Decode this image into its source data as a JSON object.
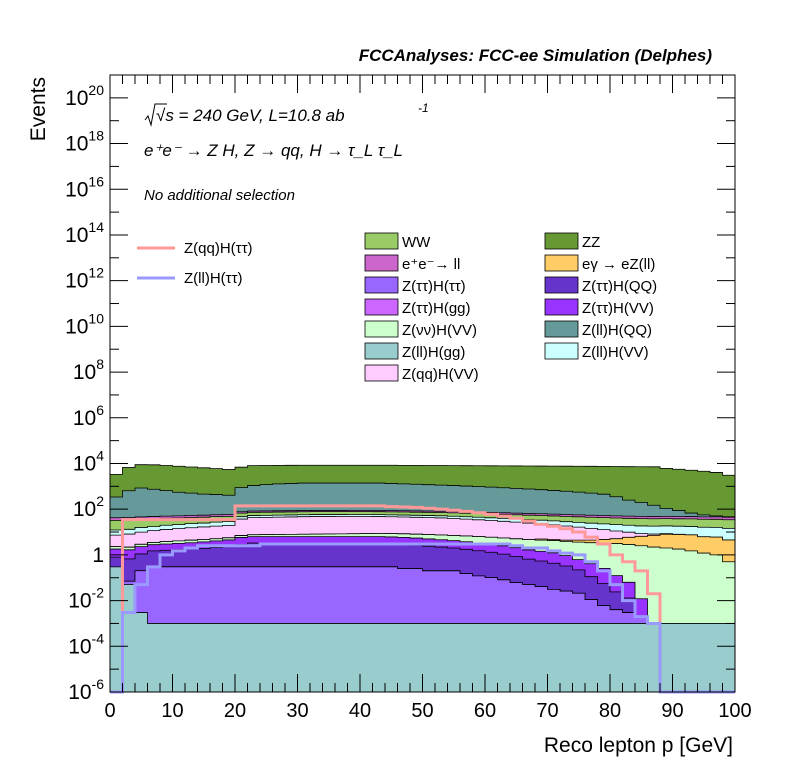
{
  "chart_data": {
    "type": "area",
    "title": "FCCAnalyses: FCC-ee Simulation (Delphes)",
    "xlabel": "Reco lepton p [GeV]",
    "ylabel": "Events",
    "xlim": [
      0,
      100
    ],
    "ylim": [
      1e-06,
      1e+21
    ],
    "y_log_scale": true,
    "x_ticks": [
      "0",
      "10",
      "20",
      "30",
      "40",
      "50",
      "60",
      "70",
      "80",
      "90",
      "100"
    ],
    "y_ticks": [
      {
        "base": "10",
        "exp": "-6",
        "value": 1e-06
      },
      {
        "base": "10",
        "exp": "-4",
        "value": 0.0001
      },
      {
        "base": "10",
        "exp": "-2",
        "value": 0.01
      },
      {
        "base": "1",
        "exp": "",
        "value": 1
      },
      {
        "base": "10",
        "exp": "2",
        "value": 100.0
      },
      {
        "base": "10",
        "exp": "4",
        "value": 10000.0
      },
      {
        "base": "10",
        "exp": "6",
        "value": 1000000.0
      },
      {
        "base": "10",
        "exp": "8",
        "value": 100000000.0
      },
      {
        "base": "10",
        "exp": "10",
        "value": 10000000000.0
      },
      {
        "base": "10",
        "exp": "12",
        "value": 1000000000000.0
      },
      {
        "base": "10",
        "exp": "14",
        "value": 100000000000000.0
      },
      {
        "base": "10",
        "exp": "16",
        "value": 1e+16
      },
      {
        "base": "10",
        "exp": "18",
        "value": 1e+18
      },
      {
        "base": "10",
        "exp": "20",
        "value": 1e+20
      }
    ],
    "annotations": {
      "energy": "√s = 240 GeV, L=10.8 ab",
      "energy_sup": "-1",
      "process": "e⁺e⁻ → Z H, Z → qq, H → τ_L τ_L",
      "selection": "No additional selection"
    },
    "grid": false,
    "legend_placement": "top-center",
    "signal_legend": [
      {
        "name": "Z(qq)H(ττ)",
        "color": "#ff9999"
      },
      {
        "name": "Z(ll)H(ττ)",
        "color": "#9999ff"
      }
    ],
    "background_legend": [
      {
        "name": "WW",
        "color": "#99cc66"
      },
      {
        "name": "ZZ",
        "color": "#669933"
      },
      {
        "name": "e⁺e⁻→ ll",
        "color": "#cc66cc"
      },
      {
        "name": "eγ → eZ(ll)",
        "color": "#ffcc66"
      },
      {
        "name": "Z(ττ)H(ττ)",
        "color": "#9966ff"
      },
      {
        "name": "Z(ττ)H(QQ)",
        "color": "#6633cc"
      },
      {
        "name": "Z(ττ)H(gg)",
        "color": "#cc66ff"
      },
      {
        "name": "Z(ττ)H(VV)",
        "color": "#9933ff"
      },
      {
        "name": "Z(νν)H(VV)",
        "color": "#ccffcc"
      },
      {
        "name": "Z(ll)H(QQ)",
        "color": "#669999"
      },
      {
        "name": "Z(ll)H(gg)",
        "color": "#99cccc"
      },
      {
        "name": "Z(ll)H(VV)",
        "color": "#ccffff"
      },
      {
        "name": "Z(qq)H(VV)",
        "color": "#ffccff"
      }
    ],
    "bin_edges": [
      0,
      2,
      4,
      6,
      8,
      10,
      12,
      14,
      16,
      18,
      20,
      22,
      24,
      26,
      28,
      30,
      32,
      34,
      36,
      38,
      40,
      42,
      44,
      46,
      48,
      50,
      52,
      54,
      56,
      58,
      60,
      62,
      64,
      66,
      68,
      70,
      72,
      74,
      76,
      78,
      80,
      82,
      84,
      86,
      88,
      90,
      92,
      94,
      96,
      98,
      100
    ],
    "stack_order": "bottom-to-top",
    "stacked_series": [
      {
        "name": "Z(ll)H(gg)",
        "color": "#99cccc",
        "values": [
          0.3,
          0.05,
          0.003,
          0.001,
          0.001,
          0.001,
          0.001,
          0.001,
          0.001,
          0.001,
          0.001,
          0.001,
          0.001,
          0.001,
          0.001,
          0.001,
          0.001,
          0.001,
          0.001,
          0.001,
          0.001,
          0.001,
          0.001,
          0.001,
          0.001,
          0.001,
          0.001,
          0.001,
          0.001,
          0.001,
          0.001,
          0.001,
          0.001,
          0.001,
          0.001,
          0.001,
          0.001,
          0.001,
          0.001,
          0.001,
          0.001,
          0.001,
          0.001,
          0.001,
          0.001,
          0.001,
          0.001,
          0.001,
          0.001,
          0.001
        ]
      },
      {
        "name": "Z(ττ)H(ττ)",
        "color": "#9966ff",
        "values": [
          0,
          0.02,
          0.2,
          0.3,
          0.3,
          0.3,
          0.3,
          0.3,
          0.3,
          0.3,
          0.3,
          0.3,
          0.3,
          0.3,
          0.3,
          0.3,
          0.3,
          0.3,
          0.3,
          0.3,
          0.3,
          0.3,
          0.3,
          0.25,
          0.25,
          0.2,
          0.2,
          0.2,
          0.15,
          0.12,
          0.1,
          0.08,
          0.06,
          0.05,
          0.04,
          0.03,
          0.025,
          0.02,
          0.01,
          0.005,
          0.003,
          0.002,
          0.001,
          0,
          0,
          0,
          0,
          0,
          0,
          0
        ]
      },
      {
        "name": "Z(ττ)H(gg)",
        "color": "#cc66ff",
        "values": [
          0,
          0,
          0,
          0,
          0,
          0,
          0,
          0,
          0,
          0,
          0,
          0,
          0,
          0,
          0,
          0,
          0,
          0,
          0,
          0,
          0,
          0,
          0,
          0,
          0,
          0,
          0,
          0,
          0,
          0,
          0,
          0,
          0,
          0,
          0,
          0,
          0,
          0,
          0,
          0,
          0,
          0,
          0,
          0,
          0,
          0,
          0,
          0,
          0,
          0
        ]
      },
      {
        "name": "Z(ττ)H(QQ)",
        "color": "#6633cc",
        "values": [
          0.5,
          0.6,
          0.9,
          1.2,
          1.3,
          1.4,
          1.5,
          1.6,
          1.8,
          2,
          2.5,
          3,
          3,
          3,
          3,
          3,
          3,
          3,
          3,
          3,
          3,
          3,
          2.8,
          2.6,
          2.4,
          2.2,
          2,
          1.8,
          1.6,
          1.4,
          1.2,
          1,
          0.8,
          0.6,
          0.5,
          0.4,
          0.3,
          0.2,
          0.1,
          0.05,
          0.02,
          0.01,
          0,
          0,
          0,
          0,
          0,
          0,
          0,
          0
        ]
      },
      {
        "name": "Z(ττ)H(VV)",
        "color": "#9933ff",
        "values": [
          1,
          1,
          1.2,
          1.3,
          1.4,
          1.5,
          1.6,
          1.8,
          2,
          2.2,
          3,
          3,
          3,
          3,
          3,
          3,
          3,
          3,
          3,
          3,
          3,
          3,
          3,
          3,
          2.8,
          2.6,
          2.4,
          2.2,
          2,
          1.8,
          1.6,
          1.4,
          1.2,
          1,
          0.9,
          0.8,
          0.6,
          0.4,
          0.3,
          0.2,
          0.1,
          0.05,
          0.01,
          0,
          0,
          0,
          0,
          0,
          0,
          0
        ]
      },
      {
        "name": "Z(νν)H(VV)",
        "color": "#ccffcc",
        "values": [
          0.5,
          0.5,
          0.6,
          0.7,
          0.8,
          0.9,
          1,
          1,
          1,
          1.1,
          1.2,
          1.3,
          1.4,
          1.5,
          1.6,
          1.7,
          1.8,
          1.9,
          2,
          2.1,
          2.2,
          2.3,
          2.4,
          2.5,
          2.6,
          2.7,
          2.8,
          2.9,
          3,
          3,
          3,
          3,
          3,
          3,
          3,
          3,
          3,
          3,
          3,
          3,
          3,
          2.8,
          2.5,
          2.2,
          2,
          1.8,
          1.5,
          1.2,
          1,
          0.5
        ]
      },
      {
        "name": "eγ → eZ(ll)",
        "color": "#ffcc66",
        "values": [
          0,
          0,
          0,
          0,
          0,
          0,
          0,
          0,
          0,
          0,
          0,
          0,
          0,
          0,
          0,
          0,
          0,
          0,
          0,
          0,
          0,
          0,
          0,
          0,
          0,
          0,
          0,
          0,
          0,
          0,
          0,
          0,
          0,
          0,
          0.5,
          0.5,
          0.5,
          0.8,
          1,
          1.5,
          2,
          3,
          4,
          5,
          6,
          6,
          6,
          5,
          5,
          4
        ]
      },
      {
        "name": "Z(qq)H(VV)",
        "color": "#ffccff",
        "values": [
          5,
          6,
          7,
          8,
          9,
          10,
          11,
          12,
          13,
          14,
          30,
          35,
          36,
          37,
          38,
          39,
          40,
          40,
          40,
          40,
          40,
          39,
          38,
          37,
          36,
          35,
          34,
          32,
          30,
          28,
          26,
          24,
          22,
          20,
          18,
          16,
          14,
          12,
          10,
          8,
          6,
          4,
          2,
          1,
          0.5,
          0.2,
          0.1,
          0,
          0,
          0
        ]
      },
      {
        "name": "Z(ll)H(VV)",
        "color": "#ccffff",
        "values": [
          5,
          5,
          6,
          6,
          7,
          7,
          8,
          8,
          9,
          9,
          10,
          10,
          10,
          10,
          10,
          10,
          10,
          10,
          10,
          10,
          10,
          10,
          10,
          10,
          10,
          10,
          10,
          10,
          10,
          10,
          10,
          10,
          10,
          10,
          10,
          10,
          10,
          10,
          10,
          10,
          10,
          10,
          10,
          10,
          10,
          10,
          10,
          10,
          10,
          10
        ]
      },
      {
        "name": "WW",
        "color": "#99cc66",
        "values": [
          20,
          20,
          20,
          20,
          20,
          20,
          20,
          20,
          20,
          20,
          20,
          20,
          20,
          20,
          20,
          20,
          20,
          20,
          20,
          20,
          20,
          20,
          20,
          20,
          20,
          20,
          20,
          20,
          20,
          20,
          20,
          20,
          20,
          20,
          20,
          20,
          20,
          20,
          20,
          20,
          20,
          20,
          20,
          20,
          20,
          20,
          20,
          20,
          20,
          20
        ]
      },
      {
        "name": "e⁺e⁻→ ll",
        "color": "#cc66cc",
        "values": [
          10,
          10,
          10,
          10,
          10,
          10,
          10,
          10,
          10,
          10,
          10,
          10,
          10,
          10,
          10,
          10,
          10,
          10,
          10,
          10,
          10,
          10,
          10,
          10,
          10,
          10,
          10,
          10,
          10,
          10,
          10,
          10,
          10,
          10,
          10,
          10,
          10,
          10,
          10,
          10,
          10,
          10,
          10,
          10,
          10,
          10,
          10,
          10,
          10,
          10
        ]
      },
      {
        "name": "Z(ll)H(QQ)",
        "color": "#669999",
        "values": [
          300,
          600,
          800,
          700,
          600,
          500,
          450,
          400,
          380,
          350,
          800,
          1000,
          1100,
          1200,
          1250,
          1300,
          1300,
          1300,
          1300,
          1300,
          1300,
          1300,
          1250,
          1200,
          1150,
          1100,
          1050,
          1000,
          950,
          900,
          850,
          800,
          750,
          700,
          650,
          600,
          550,
          500,
          450,
          400,
          300,
          200,
          150,
          100,
          60,
          40,
          20,
          10,
          5,
          2
        ]
      },
      {
        "name": "ZZ",
        "color": "#669933",
        "values": [
          3000,
          6000,
          8000,
          8000,
          7500,
          7000,
          6500,
          6000,
          5500,
          5000,
          6000,
          7000,
          7000,
          7000,
          7000,
          7000,
          7000,
          7000,
          7000,
          7000,
          7000,
          7000,
          7000,
          7000,
          7000,
          7000,
          7000,
          7000,
          7000,
          7000,
          7000,
          7000,
          7000,
          7000,
          7000,
          7000,
          7000,
          7000,
          7000,
          7000,
          7000,
          7000,
          7000,
          7000,
          6000,
          5500,
          5000,
          4500,
          4000,
          3000
        ]
      }
    ],
    "signal_series": [
      {
        "name": "Z(qq)H(ττ)",
        "color": "#ff9999",
        "values": [
          0,
          35,
          35,
          35,
          35,
          35,
          35,
          35,
          35,
          35,
          140,
          140,
          140,
          140,
          140,
          140,
          140,
          140,
          140,
          140,
          140,
          140,
          130,
          125,
          120,
          110,
          100,
          90,
          80,
          70,
          60,
          50,
          40,
          30,
          22,
          18,
          14,
          10,
          6,
          3,
          1,
          0.5,
          0.2,
          0.02,
          0,
          0,
          0,
          0,
          0,
          0
        ]
      },
      {
        "name": "Z(ll)H(ττ)",
        "color": "#9999ff",
        "values": [
          0,
          0.003,
          0.05,
          0.3,
          1,
          1.5,
          2,
          2.5,
          2.5,
          2.5,
          2.5,
          2.5,
          3,
          3,
          3,
          3,
          3,
          3,
          3,
          3,
          3,
          3,
          3,
          3,
          3,
          3,
          3,
          3,
          3,
          3,
          3,
          3,
          2.5,
          2,
          2,
          1.5,
          1.2,
          1,
          0.5,
          0.2,
          0.05,
          0.01,
          0.002,
          0.001,
          0,
          0,
          0,
          0,
          0,
          0
        ]
      }
    ]
  }
}
